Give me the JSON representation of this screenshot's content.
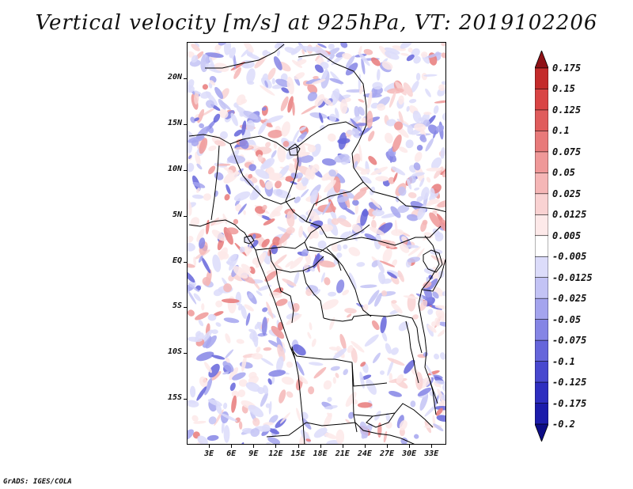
{
  "title": "Vertical velocity [m/s] at 925hPa, VT: 2019102206",
  "credit": "GrADS: IGES/COLA",
  "map": {
    "region": "Central Africa",
    "variable": "Vertical velocity",
    "units": "m/s",
    "level": "925hPa",
    "valid_time": "2019102206",
    "lat_labels": [
      "20N",
      "15N",
      "10N",
      "5N",
      "EQ",
      "5S",
      "10S",
      "15S"
    ],
    "lon_labels": [
      "3E",
      "6E",
      "9E",
      "12E",
      "15E",
      "18E",
      "21E",
      "24E",
      "27E",
      "30E",
      "33E"
    ],
    "lat_range": [
      -20,
      24
    ],
    "lon_range": [
      0,
      35
    ]
  },
  "colorbar": {
    "labels": [
      "0.175",
      "0.15",
      "0.125",
      "0.1",
      "0.075",
      "0.05",
      "0.025",
      "0.0125",
      "0.005",
      "-0.005",
      "-0.0125",
      "-0.025",
      "-0.05",
      "-0.075",
      "-0.1",
      "-0.125",
      "-0.175",
      "-0.2"
    ],
    "colors": [
      "#a31b21",
      "#c42b2b",
      "#d94444",
      "#e05c5c",
      "#e87a7a",
      "#ef9898",
      "#f5b6b6",
      "#f9d2d2",
      "#fde9e9",
      "#ffffff",
      "#dcdcfa",
      "#c3c3f5",
      "#a4a4ee",
      "#8585e5",
      "#6565db",
      "#4848cf",
      "#2e2ec0",
      "#1c1cab",
      "#14149a"
    ],
    "cap_top_color": "#8e1116",
    "cap_bottom_color": "#0d0d86"
  }
}
